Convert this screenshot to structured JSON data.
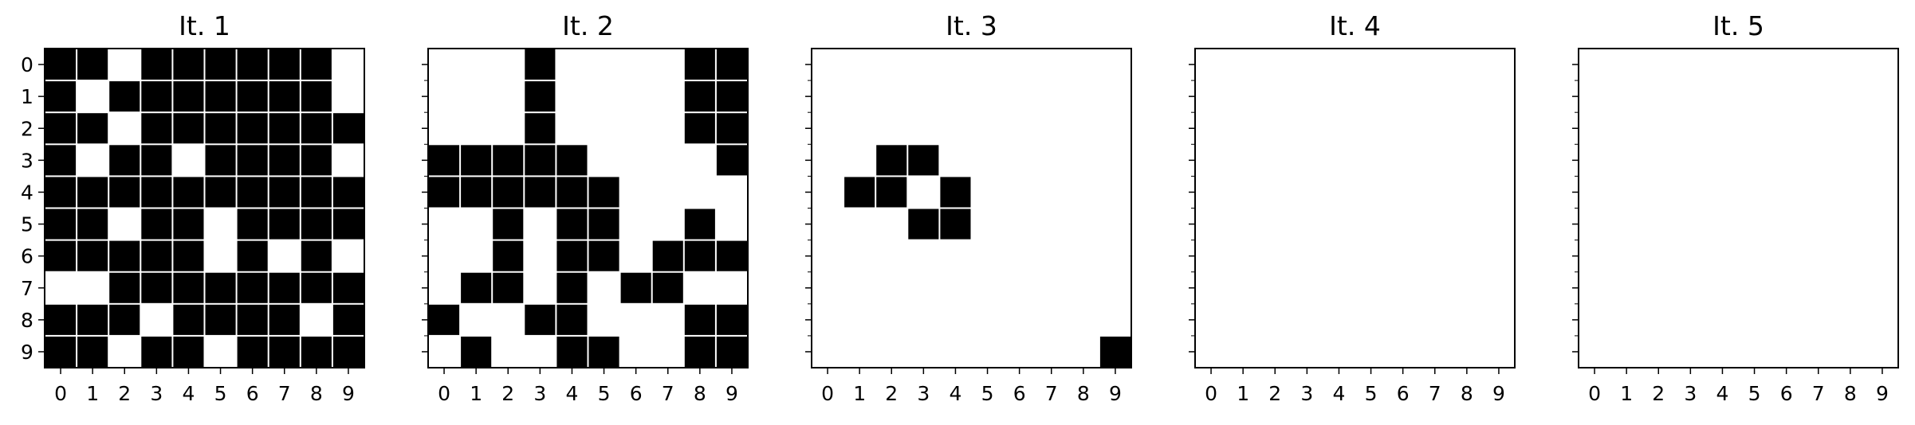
{
  "chart_data": {
    "type": "heatmap",
    "colors": {
      "filled": "#000000",
      "empty": "#ffffff",
      "cell_border": "#ffffff",
      "frame": "#000000"
    },
    "panels": [
      {
        "title": "It. 1",
        "x_ticks": [
          "0",
          "1",
          "2",
          "3",
          "4",
          "5",
          "6",
          "7",
          "8",
          "9"
        ],
        "y_ticks": [
          "0",
          "1",
          "2",
          "3",
          "4",
          "5",
          "6",
          "7",
          "8",
          "9"
        ],
        "grid": [
          [
            1,
            1,
            0,
            1,
            1,
            1,
            1,
            1,
            1,
            0
          ],
          [
            1,
            0,
            1,
            1,
            1,
            1,
            1,
            1,
            1,
            0
          ],
          [
            1,
            1,
            0,
            1,
            1,
            1,
            1,
            1,
            1,
            1
          ],
          [
            1,
            0,
            1,
            1,
            0,
            1,
            1,
            1,
            1,
            0
          ],
          [
            1,
            1,
            1,
            1,
            1,
            1,
            1,
            1,
            1,
            1
          ],
          [
            1,
            1,
            0,
            1,
            1,
            0,
            1,
            1,
            1,
            1
          ],
          [
            1,
            1,
            1,
            1,
            1,
            0,
            1,
            0,
            1,
            0
          ],
          [
            0,
            0,
            1,
            1,
            1,
            1,
            1,
            1,
            1,
            1
          ],
          [
            1,
            1,
            1,
            0,
            1,
            1,
            1,
            1,
            0,
            1
          ],
          [
            1,
            1,
            0,
            1,
            1,
            0,
            1,
            1,
            1,
            1
          ]
        ]
      },
      {
        "title": "It. 2",
        "x_ticks": [
          "0",
          "1",
          "2",
          "3",
          "4",
          "5",
          "6",
          "7",
          "8",
          "9"
        ],
        "y_ticks": [],
        "grid": [
          [
            0,
            0,
            0,
            1,
            0,
            0,
            0,
            0,
            1,
            1
          ],
          [
            0,
            0,
            0,
            1,
            0,
            0,
            0,
            0,
            1,
            1
          ],
          [
            0,
            0,
            0,
            1,
            0,
            0,
            0,
            0,
            1,
            1
          ],
          [
            1,
            1,
            1,
            1,
            1,
            0,
            0,
            0,
            0,
            1
          ],
          [
            1,
            1,
            1,
            1,
            1,
            1,
            0,
            0,
            0,
            0
          ],
          [
            0,
            0,
            1,
            0,
            1,
            1,
            0,
            0,
            1,
            0
          ],
          [
            0,
            0,
            1,
            0,
            1,
            1,
            0,
            1,
            1,
            1
          ],
          [
            0,
            1,
            1,
            0,
            1,
            0,
            1,
            1,
            0,
            0
          ],
          [
            1,
            0,
            0,
            1,
            1,
            0,
            0,
            0,
            1,
            1
          ],
          [
            0,
            1,
            0,
            0,
            1,
            1,
            0,
            0,
            1,
            1
          ]
        ]
      },
      {
        "title": "It. 3",
        "x_ticks": [
          "0",
          "1",
          "2",
          "3",
          "4",
          "5",
          "6",
          "7",
          "8",
          "9"
        ],
        "y_ticks": [],
        "grid": [
          [
            0,
            0,
            0,
            0,
            0,
            0,
            0,
            0,
            0,
            0
          ],
          [
            0,
            0,
            0,
            0,
            0,
            0,
            0,
            0,
            0,
            0
          ],
          [
            0,
            0,
            0,
            0,
            0,
            0,
            0,
            0,
            0,
            0
          ],
          [
            0,
            0,
            1,
            1,
            0,
            0,
            0,
            0,
            0,
            0
          ],
          [
            0,
            1,
            1,
            0,
            1,
            0,
            0,
            0,
            0,
            0
          ],
          [
            0,
            0,
            0,
            1,
            1,
            0,
            0,
            0,
            0,
            0
          ],
          [
            0,
            0,
            0,
            0,
            0,
            0,
            0,
            0,
            0,
            0
          ],
          [
            0,
            0,
            0,
            0,
            0,
            0,
            0,
            0,
            0,
            0
          ],
          [
            0,
            0,
            0,
            0,
            0,
            0,
            0,
            0,
            0,
            0
          ],
          [
            0,
            0,
            0,
            0,
            0,
            0,
            0,
            0,
            0,
            1
          ]
        ]
      },
      {
        "title": "It. 4",
        "x_ticks": [
          "0",
          "1",
          "2",
          "3",
          "4",
          "5",
          "6",
          "7",
          "8",
          "9"
        ],
        "y_ticks": [],
        "grid": [
          [
            0,
            0,
            0,
            0,
            0,
            0,
            0,
            0,
            0,
            0
          ],
          [
            0,
            0,
            0,
            0,
            0,
            0,
            0,
            0,
            0,
            0
          ],
          [
            0,
            0,
            0,
            0,
            0,
            0,
            0,
            0,
            0,
            0
          ],
          [
            0,
            0,
            0,
            0,
            0,
            0,
            0,
            0,
            0,
            0
          ],
          [
            0,
            0,
            0,
            0,
            0,
            0,
            0,
            0,
            0,
            0
          ],
          [
            0,
            0,
            0,
            0,
            0,
            0,
            0,
            0,
            0,
            0
          ],
          [
            0,
            0,
            0,
            0,
            0,
            0,
            0,
            0,
            0,
            0
          ],
          [
            0,
            0,
            0,
            0,
            0,
            0,
            0,
            0,
            0,
            0
          ],
          [
            0,
            0,
            0,
            0,
            0,
            0,
            0,
            0,
            0,
            0
          ],
          [
            0,
            0,
            0,
            0,
            0,
            0,
            0,
            0,
            0,
            0
          ]
        ]
      },
      {
        "title": "It. 5",
        "x_ticks": [
          "0",
          "1",
          "2",
          "3",
          "4",
          "5",
          "6",
          "7",
          "8",
          "9"
        ],
        "y_ticks": [],
        "grid": [
          [
            0,
            0,
            0,
            0,
            0,
            0,
            0,
            0,
            0,
            0
          ],
          [
            0,
            0,
            0,
            0,
            0,
            0,
            0,
            0,
            0,
            0
          ],
          [
            0,
            0,
            0,
            0,
            0,
            0,
            0,
            0,
            0,
            0
          ],
          [
            0,
            0,
            0,
            0,
            0,
            0,
            0,
            0,
            0,
            0
          ],
          [
            0,
            0,
            0,
            0,
            0,
            0,
            0,
            0,
            0,
            0
          ],
          [
            0,
            0,
            0,
            0,
            0,
            0,
            0,
            0,
            0,
            0
          ],
          [
            0,
            0,
            0,
            0,
            0,
            0,
            0,
            0,
            0,
            0
          ],
          [
            0,
            0,
            0,
            0,
            0,
            0,
            0,
            0,
            0,
            0
          ],
          [
            0,
            0,
            0,
            0,
            0,
            0,
            0,
            0,
            0,
            0
          ],
          [
            0,
            0,
            0,
            0,
            0,
            0,
            0,
            0,
            0,
            0
          ]
        ]
      }
    ]
  }
}
